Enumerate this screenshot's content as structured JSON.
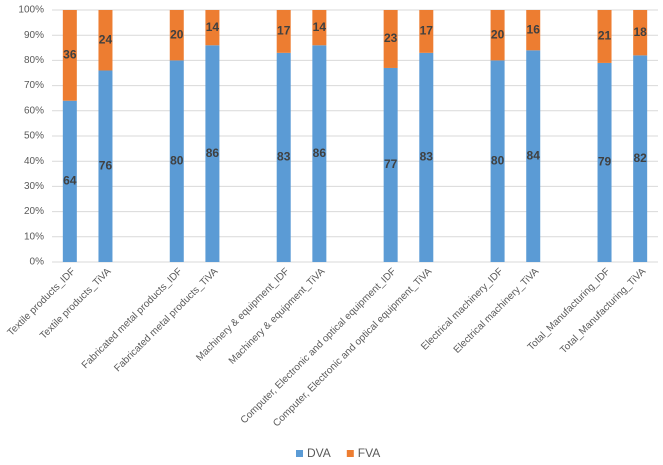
{
  "chart_data": {
    "type": "bar",
    "stacked": true,
    "grid": true,
    "legend": "bottom",
    "categories": [
      "Textile products_IDF",
      "Textile products_TiVA",
      null,
      "Fabricated metal products_IDF",
      "Fabricated metal products_TiVA",
      null,
      "Machinery & equipment_IDF",
      "Machinery & equipment_TiVA",
      null,
      "Computer, Electronic and optical equipment_IDF",
      "Computer, Electronic and optical equipment_TiVA",
      null,
      "Electrical machinery_IDF",
      "Electrical machinery_TiVA",
      null,
      "Total_Manufacturing_IDF",
      "Total_Manufacturing_TiVA"
    ],
    "series": [
      {
        "name": "DVA",
        "color": "#5b9bd5",
        "values": [
          64,
          76,
          null,
          80,
          86,
          null,
          83,
          86,
          null,
          77,
          83,
          null,
          80,
          84,
          null,
          79,
          82
        ]
      },
      {
        "name": "FVA",
        "color": "#ed7d31",
        "values": [
          36,
          24,
          null,
          20,
          14,
          null,
          17,
          14,
          null,
          23,
          17,
          null,
          20,
          16,
          null,
          21,
          18
        ]
      }
    ],
    "ylim": [
      0,
      100
    ],
    "yticks": [
      {
        "value": 0,
        "label": "0%"
      },
      {
        "value": 10,
        "label": "10%"
      },
      {
        "value": 20,
        "label": "20%"
      },
      {
        "value": 30,
        "label": "30%"
      },
      {
        "value": 40,
        "label": "40%"
      },
      {
        "value": 50,
        "label": "50%"
      },
      {
        "value": 60,
        "label": "60%"
      },
      {
        "value": 70,
        "label": "70%"
      },
      {
        "value": 80,
        "label": "80%"
      },
      {
        "value": 90,
        "label": "90%"
      },
      {
        "value": 100,
        "label": "100%"
      }
    ]
  }
}
